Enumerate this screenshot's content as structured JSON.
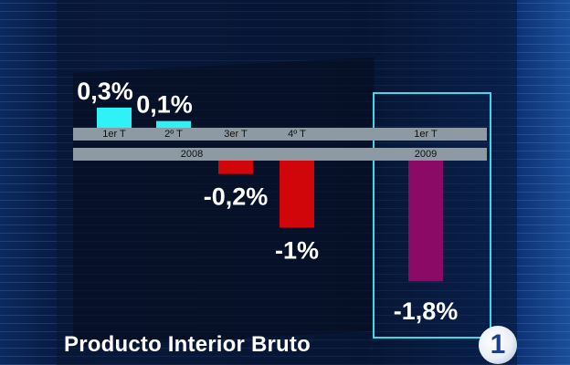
{
  "chart_data": {
    "type": "bar",
    "title": "Producto Interior Bruto",
    "categories": [
      "1er T",
      "2º T",
      "3er T",
      "4º T",
      "1er T"
    ],
    "years": [
      {
        "label": "2008",
        "span": [
          0,
          3
        ]
      },
      {
        "label": "2009",
        "span": [
          4,
          4
        ]
      }
    ],
    "values": [
      0.3,
      0.1,
      -0.2,
      -1.0,
      -1.8
    ],
    "value_labels": [
      "0,3%",
      "0,1%",
      "-0,2%",
      "-1%",
      "-1,8%"
    ],
    "unit": "%",
    "colors": [
      "#2ef2f5",
      "#2ef2f5",
      "#d0060a",
      "#d0060a",
      "#8a0a66"
    ],
    "highlighted_index": 4,
    "highlight_color": "#43d8e6",
    "grid": false
  },
  "channel_logo": "1"
}
